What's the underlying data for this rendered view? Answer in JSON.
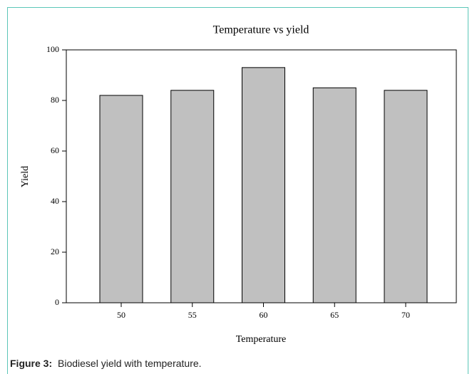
{
  "chart_data": {
    "type": "bar",
    "title": "Temperature vs yield",
    "x_label": "Temperature",
    "y_label": "Yield",
    "categories": [
      "50",
      "55",
      "60",
      "65",
      "70"
    ],
    "values": [
      82,
      84,
      93,
      85,
      84
    ],
    "color": "#c0c0c0",
    "ylim": [
      0,
      100
    ],
    "yticks": [
      0,
      20,
      40,
      60,
      80,
      100
    ],
    "grid": false
  },
  "caption": {
    "label": "Figure 3:",
    "text": "Biodiesel yield with temperature."
  }
}
